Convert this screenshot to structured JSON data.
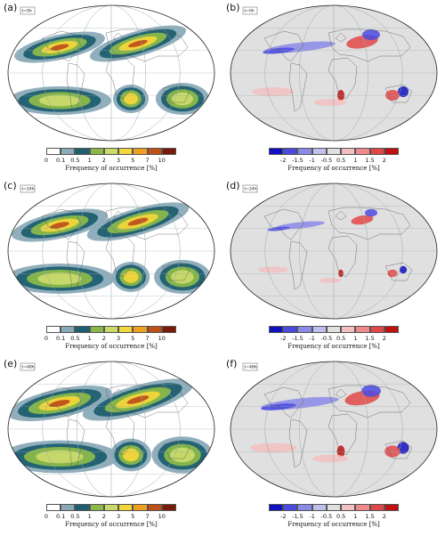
{
  "left_scale": {
    "ticks": [
      "0",
      "0.1",
      "0.5",
      "1",
      "2",
      "3",
      "5",
      "7",
      "10"
    ],
    "label": "Frequency of occurrence [%]",
    "colors": [
      "#ffffff",
      "#8aaab8",
      "#1d5f70",
      "#8ab84a",
      "#c9da6a",
      "#f2d63a",
      "#f0a020",
      "#c0501a",
      "#7a1a0a"
    ]
  },
  "right_scale": {
    "ticks": [
      "-2",
      "-1.5",
      "-1",
      "-0.5",
      "0.5",
      "1",
      "1.5",
      "2"
    ],
    "label": "Frequency of occurrence [%]",
    "colors": [
      "#1010c0",
      "#4a4ae0",
      "#8a8ae8",
      "#c0c0ee",
      "#e0e0e0",
      "#f2c0c0",
      "#ee8a8a",
      "#e04848",
      "#c01010"
    ]
  },
  "panels": [
    {
      "label": "(a)",
      "time": "t=0h",
      "type": "freq",
      "intensity": 1.0
    },
    {
      "label": "(b)",
      "time": "t=0h",
      "type": "diff",
      "intensity": 1.0
    },
    {
      "label": "(c)",
      "time": "t=24h",
      "type": "freq",
      "intensity": 1.2
    },
    {
      "label": "(d)",
      "time": "t=24h",
      "type": "diff",
      "intensity": 0.7
    },
    {
      "label": "(e)",
      "time": "t=48h",
      "type": "freq",
      "intensity": 1.5
    },
    {
      "label": "(f)",
      "time": "t=48h",
      "type": "diff",
      "intensity": 1.1
    }
  ]
}
